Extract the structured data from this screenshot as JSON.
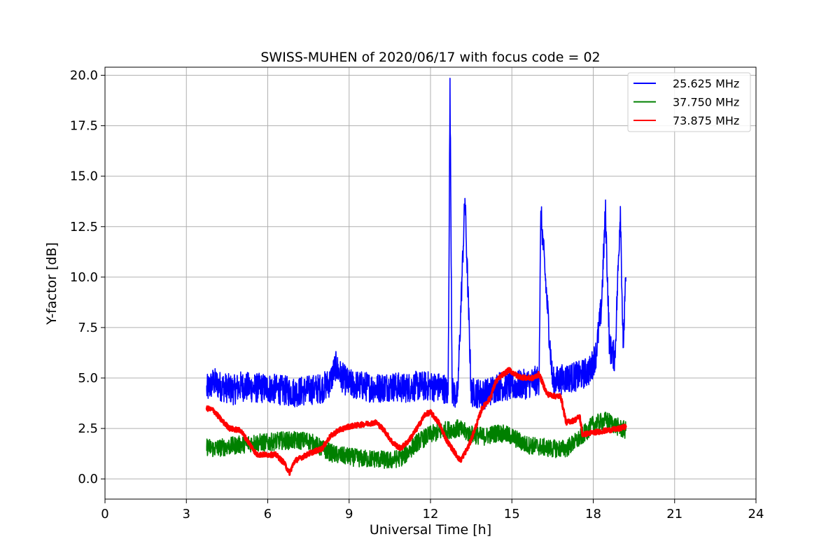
{
  "chart_data": {
    "type": "line",
    "title": "SWISS-MUHEN of 2020/06/17 with focus code = 02",
    "xlabel": "Universal Time [h]",
    "ylabel": "Y-factor [dB]",
    "xlim": [
      0,
      24
    ],
    "ylim": [
      -1.0,
      20.4
    ],
    "xticks": [
      0,
      3,
      6,
      9,
      12,
      15,
      18,
      21,
      24
    ],
    "xtick_labels": [
      "0",
      "3",
      "6",
      "9",
      "12",
      "15",
      "18",
      "21",
      "24"
    ],
    "yticks": [
      0,
      2.5,
      5,
      7.5,
      10,
      12.5,
      15,
      17.5,
      20
    ],
    "ytick_labels": [
      "0.0",
      "2.5",
      "5.0",
      "7.5",
      "10.0",
      "12.5",
      "15.0",
      "17.5",
      "20.0"
    ],
    "grid": true,
    "legend": "top-right",
    "series": [
      {
        "name": "25.625 MHz",
        "color": "#0000ff",
        "x": [
          3.75,
          4.0,
          4.25,
          4.5,
          4.75,
          5.0,
          5.5,
          6.0,
          6.5,
          7.0,
          7.5,
          8.0,
          8.3,
          8.5,
          8.7,
          9.0,
          9.5,
          10.0,
          10.5,
          11.0,
          11.5,
          12.0,
          12.5,
          12.65,
          12.72,
          12.8,
          13.0,
          13.27,
          13.5,
          14.0,
          14.5,
          15.0,
          15.5,
          16.0,
          16.07,
          16.5,
          17.0,
          17.5,
          17.9,
          18.1,
          18.3,
          18.45,
          18.6,
          18.8,
          19.0,
          19.1,
          19.2
        ],
        "y": [
          4.4,
          4.8,
          4.6,
          4.5,
          4.4,
          4.6,
          4.5,
          4.5,
          4.4,
          4.3,
          4.4,
          4.5,
          4.8,
          5.6,
          5.1,
          4.7,
          4.6,
          4.5,
          4.6,
          4.5,
          4.6,
          4.6,
          4.5,
          4.2,
          19.4,
          4.3,
          4.1,
          13.9,
          4.3,
          4.2,
          4.6,
          4.6,
          4.7,
          4.9,
          13.2,
          4.8,
          5.0,
          5.1,
          5.4,
          6.2,
          8.5,
          13.3,
          6.5,
          6.0,
          13.5,
          6.5,
          9.8
        ]
      },
      {
        "name": "37.750 MHz",
        "color": "#008000",
        "x": [
          3.75,
          4.0,
          4.5,
          5.0,
          5.5,
          6.0,
          6.5,
          7.0,
          7.5,
          8.0,
          8.5,
          9.0,
          9.5,
          10.0,
          10.5,
          11.0,
          11.5,
          12.0,
          12.5,
          13.0,
          13.5,
          14.0,
          14.5,
          15.0,
          15.5,
          16.0,
          16.5,
          17.0,
          17.5,
          18.0,
          18.5,
          19.0,
          19.2
        ],
        "y": [
          1.6,
          1.5,
          1.6,
          1.7,
          1.8,
          1.8,
          1.9,
          1.9,
          1.9,
          1.5,
          1.2,
          1.1,
          1.0,
          1.0,
          0.9,
          1.1,
          1.8,
          2.2,
          2.4,
          2.5,
          2.2,
          2.1,
          2.3,
          2.1,
          1.7,
          1.6,
          1.5,
          1.5,
          2.0,
          2.7,
          2.9,
          2.5,
          2.4
        ]
      },
      {
        "name": "73.875 MHz",
        "color": "#ff0000",
        "x": [
          3.75,
          4.0,
          4.3,
          4.6,
          5.0,
          5.3,
          5.6,
          6.0,
          6.3,
          6.6,
          6.8,
          7.0,
          7.3,
          7.6,
          8.0,
          8.3,
          8.6,
          9.0,
          9.5,
          10.0,
          10.3,
          10.6,
          10.9,
          11.2,
          11.5,
          11.8,
          12.0,
          12.3,
          12.6,
          12.9,
          13.1,
          13.4,
          13.7,
          13.9,
          14.2,
          14.4,
          14.6,
          14.9,
          15.2,
          15.5,
          15.8,
          16.0,
          16.3,
          16.6,
          16.8,
          17.0,
          17.3,
          17.5,
          17.6,
          18.0,
          18.5,
          19.0,
          19.2
        ],
        "y": [
          3.5,
          3.4,
          2.9,
          2.5,
          2.4,
          1.8,
          1.2,
          1.2,
          1.2,
          0.8,
          0.3,
          0.9,
          1.1,
          1.3,
          1.5,
          2.1,
          2.4,
          2.6,
          2.7,
          2.8,
          2.4,
          1.8,
          1.5,
          1.9,
          2.5,
          3.2,
          3.3,
          2.8,
          1.9,
          1.3,
          0.9,
          1.6,
          2.7,
          3.5,
          4.0,
          4.8,
          5.1,
          5.4,
          5.1,
          5.0,
          5.0,
          5.2,
          4.2,
          4.1,
          4.1,
          2.8,
          2.9,
          3.1,
          2.2,
          2.3,
          2.4,
          2.5,
          2.6
        ]
      }
    ]
  }
}
